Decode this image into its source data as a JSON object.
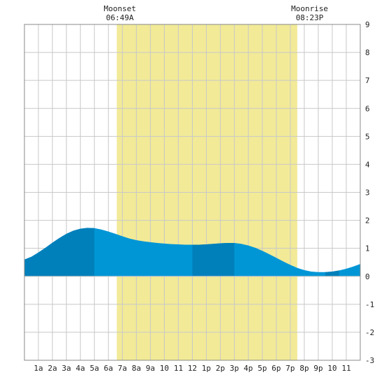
{
  "chart_data": {
    "type": "area",
    "title": "",
    "xlabel": "",
    "ylabel": "",
    "x_range_hours": [
      0,
      24
    ],
    "ylim": [
      -3,
      9
    ],
    "y_ticks": [
      -3,
      -2,
      -1,
      0,
      1,
      2,
      3,
      4,
      5,
      6,
      7,
      8,
      9
    ],
    "x_ticks": [
      {
        "hour": 1,
        "label": "1a"
      },
      {
        "hour": 2,
        "label": "2a"
      },
      {
        "hour": 3,
        "label": "3a"
      },
      {
        "hour": 4,
        "label": "4a"
      },
      {
        "hour": 5,
        "label": "5a"
      },
      {
        "hour": 6,
        "label": "6a"
      },
      {
        "hour": 7,
        "label": "7a"
      },
      {
        "hour": 8,
        "label": "8a"
      },
      {
        "hour": 9,
        "label": "9a"
      },
      {
        "hour": 10,
        "label": "10"
      },
      {
        "hour": 11,
        "label": "11"
      },
      {
        "hour": 12,
        "label": "12"
      },
      {
        "hour": 13,
        "label": "1p"
      },
      {
        "hour": 14,
        "label": "2p"
      },
      {
        "hour": 15,
        "label": "3p"
      },
      {
        "hour": 16,
        "label": "4p"
      },
      {
        "hour": 17,
        "label": "5p"
      },
      {
        "hour": 18,
        "label": "6p"
      },
      {
        "hour": 19,
        "label": "7p"
      },
      {
        "hour": 20,
        "label": "8p"
      },
      {
        "hour": 21,
        "label": "9p"
      },
      {
        "hour": 22,
        "label": "10"
      },
      {
        "hour": 23,
        "label": "11"
      }
    ],
    "grid": true,
    "daylight": {
      "start_hour": 6.6,
      "end_hour": 19.5,
      "color": "#f2ea97"
    },
    "annotations": [
      {
        "title": "Moonset",
        "time": "06:49A",
        "hour": 6.82
      },
      {
        "title": "Moonrise",
        "time": "08:23P",
        "hour": 20.38
      }
    ],
    "tide": {
      "hours": [
        0,
        0.5,
        1,
        1.5,
        2,
        2.5,
        3,
        3.5,
        4,
        4.5,
        5,
        5.5,
        6,
        6.5,
        7,
        7.5,
        8,
        8.5,
        9,
        9.5,
        10,
        10.5,
        11,
        11.5,
        12,
        12.5,
        13,
        13.5,
        14,
        14.5,
        15,
        15.5,
        16,
        16.5,
        17,
        17.5,
        18,
        18.5,
        19,
        19.5,
        20,
        20.5,
        21,
        21.5,
        22,
        22.5,
        23,
        23.5,
        24
      ],
      "heights": [
        0.6,
        0.7,
        0.85,
        1.02,
        1.2,
        1.37,
        1.52,
        1.63,
        1.7,
        1.73,
        1.72,
        1.67,
        1.6,
        1.52,
        1.43,
        1.35,
        1.29,
        1.25,
        1.22,
        1.19,
        1.17,
        1.15,
        1.14,
        1.13,
        1.13,
        1.13,
        1.14,
        1.16,
        1.18,
        1.19,
        1.19,
        1.16,
        1.1,
        1.02,
        0.91,
        0.79,
        0.66,
        0.53,
        0.41,
        0.3,
        0.22,
        0.17,
        0.15,
        0.15,
        0.17,
        0.21,
        0.27,
        0.35,
        0.44
      ],
      "fill_color": "#0096d6",
      "dark_fill_color": "#0080bb",
      "dark_bands": [
        [
          0,
          5
        ],
        [
          12,
          15
        ],
        [
          21.5,
          22.5
        ]
      ]
    }
  }
}
